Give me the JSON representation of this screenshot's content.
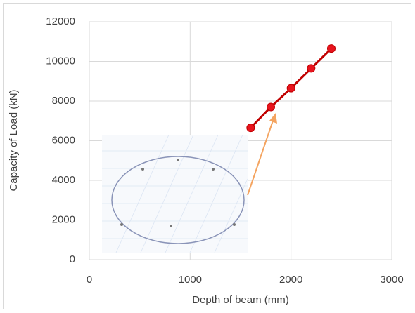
{
  "chart_data": {
    "type": "line",
    "x_label": "Depth of beam (mm)",
    "y_label": "Capacity of Load (kN)",
    "x": [
      1600,
      1800,
      2000,
      2200,
      2400
    ],
    "series": [
      {
        "color": "#c00000",
        "values": [
          6650,
          7700,
          8650,
          9650,
          10650
        ]
      }
    ],
    "xlim": [
      0,
      3000
    ],
    "xticks": [
      0,
      1000,
      2000,
      3000
    ],
    "ylim": [
      0,
      12000
    ],
    "yticks": [
      0,
      2000,
      4000,
      6000,
      8000,
      10000,
      12000
    ],
    "grid": true
  }
}
